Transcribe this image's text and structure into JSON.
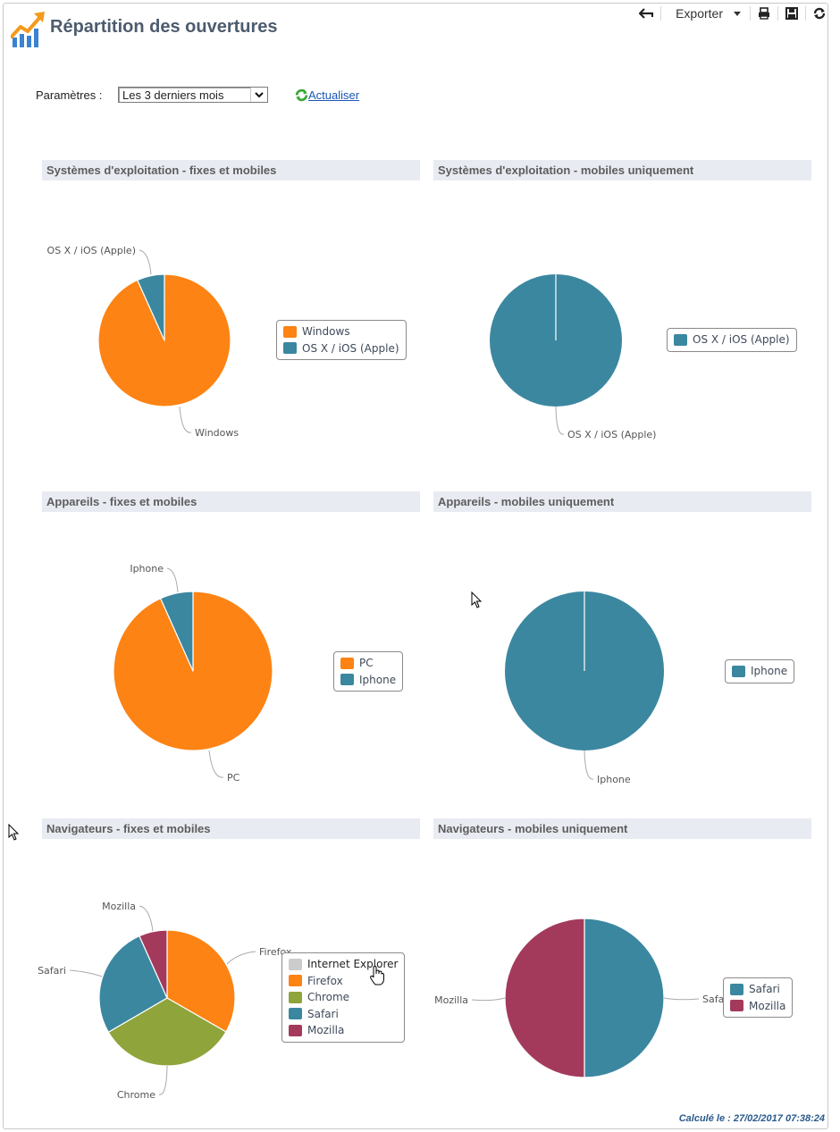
{
  "header": {
    "title": "Répartition des ouvertures",
    "logo_icon": "chart-growth-icon"
  },
  "toolbar": {
    "back_icon": "back-arrow-icon",
    "export_label": "Exporter",
    "print_icon": "print-icon",
    "save_icon": "save-icon",
    "reload_icon": "refresh-icon"
  },
  "params": {
    "label": "Paramètres :",
    "period_selected": "Les 3 derniers mois",
    "refresh_label": "Actualiser"
  },
  "colors": {
    "orange": "#fd8314",
    "teal": "#3b87a0",
    "olive": "#8fa43a",
    "crimson": "#a33a5c",
    "gray": "#cccccc"
  },
  "chart_data": [
    {
      "type": "pie",
      "title": "Systèmes d'exploitation - fixes et mobiles",
      "categories": [
        "Windows",
        "OS X / iOS (Apple)"
      ],
      "values": [
        93.3,
        6.7
      ],
      "colors": [
        "#fd8314",
        "#3b87a0"
      ],
      "legend": [
        "Windows",
        "OS X / iOS (Apple)"
      ],
      "legend_placement": "right"
    },
    {
      "type": "pie",
      "title": "Systèmes d'exploitation - mobiles uniquement",
      "categories": [
        "OS X / iOS (Apple)"
      ],
      "values": [
        100
      ],
      "colors": [
        "#3b87a0"
      ],
      "legend": [
        "OS X / iOS (Apple)"
      ],
      "legend_placement": "right"
    },
    {
      "type": "pie",
      "title": "Appareils - fixes et mobiles",
      "categories": [
        "PC",
        "Iphone"
      ],
      "values": [
        93.3,
        6.7
      ],
      "colors": [
        "#fd8314",
        "#3b87a0"
      ],
      "legend": [
        "PC",
        "Iphone"
      ],
      "legend_placement": "right"
    },
    {
      "type": "pie",
      "title": "Appareils - mobiles uniquement",
      "categories": [
        "Iphone"
      ],
      "values": [
        100
      ],
      "colors": [
        "#3b87a0"
      ],
      "legend": [
        "Iphone"
      ],
      "legend_placement": "right"
    },
    {
      "type": "pie",
      "title": "Navigateurs - fixes et mobiles",
      "categories": [
        "Internet Explorer",
        "Firefox",
        "Chrome",
        "Safari",
        "Mozilla"
      ],
      "values": [
        0,
        33.3,
        33.3,
        26.7,
        6.7
      ],
      "colors": [
        "#cccccc",
        "#fd8314",
        "#8fa43a",
        "#3b87a0",
        "#a33a5c"
      ],
      "legend": [
        "Internet Explorer",
        "Firefox",
        "Chrome",
        "Safari",
        "Mozilla"
      ],
      "legend_placement": "right"
    },
    {
      "type": "pie",
      "title": "Navigateurs - mobiles uniquement",
      "categories": [
        "Safari",
        "Mozilla"
      ],
      "values": [
        50,
        50
      ],
      "colors": [
        "#3b87a0",
        "#a33a5c"
      ],
      "legend": [
        "Safari",
        "Mozilla"
      ],
      "legend_placement": "right"
    }
  ],
  "footer": {
    "computed_at": "Calculé le : 27/02/2017 07:38:24"
  }
}
